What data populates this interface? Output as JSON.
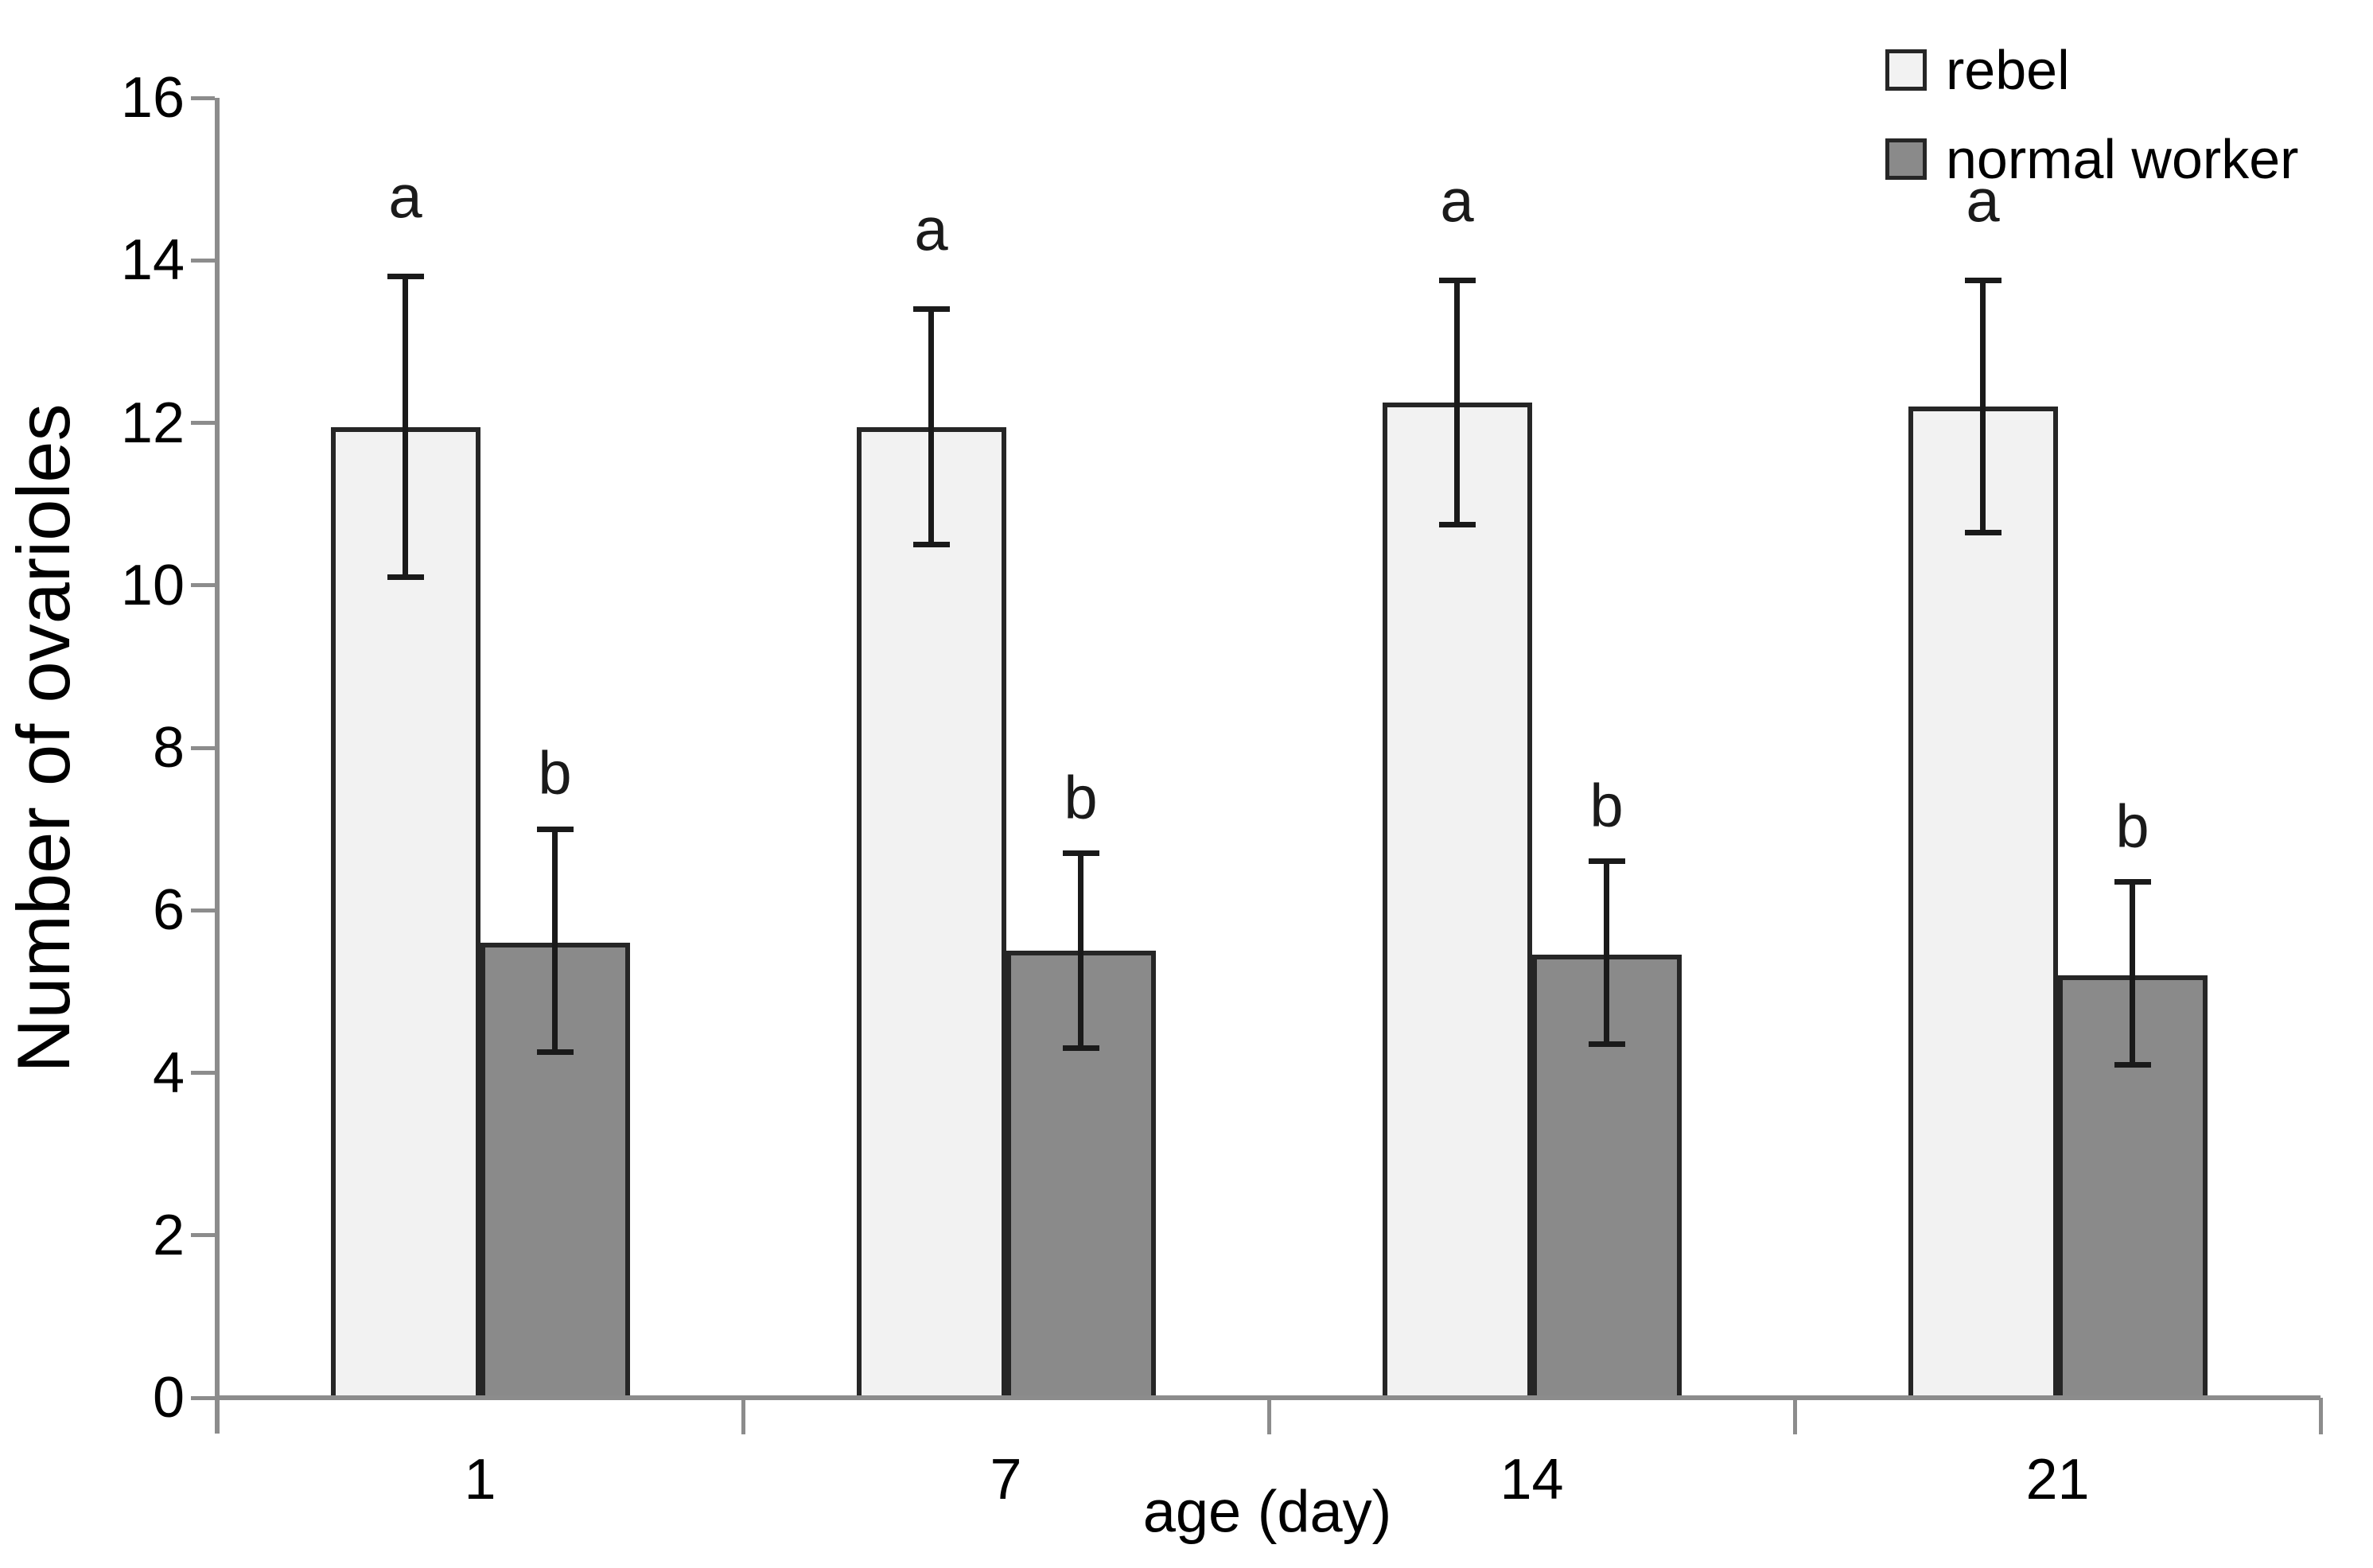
{
  "chart_data": {
    "type": "bar",
    "title": "",
    "xlabel": "age (day)",
    "ylabel": "Number of ovarioles",
    "categories": [
      "1",
      "7",
      "14",
      "21"
    ],
    "ylim": [
      0,
      16
    ],
    "yticks": [
      0,
      2,
      4,
      6,
      8,
      10,
      12,
      14,
      16
    ],
    "grid": false,
    "legend_position": "top-right",
    "series": [
      {
        "name": "rebel",
        "fill": "#f2f2f2",
        "values": [
          11.95,
          11.95,
          12.25,
          12.2
        ],
        "error_up": [
          1.85,
          1.45,
          1.5,
          1.55
        ],
        "error_down": [
          1.85,
          1.45,
          1.5,
          1.55
        ],
        "sig_letters": [
          "a",
          "a",
          "a",
          "a"
        ]
      },
      {
        "name": "normal worker",
        "fill": "#8a8a8a",
        "values": [
          5.6,
          5.5,
          5.45,
          5.2
        ],
        "error_up": [
          1.4,
          1.2,
          1.15,
          1.15
        ],
        "error_down": [
          1.35,
          1.2,
          1.1,
          1.1
        ],
        "sig_letters": [
          "b",
          "b",
          "b",
          "b"
        ]
      }
    ],
    "colors": {
      "bar_border": "#262626",
      "error_bar": "#1a1a1a",
      "axis": "#8c8c8c",
      "text": "#000000",
      "background": "#ffffff"
    }
  }
}
